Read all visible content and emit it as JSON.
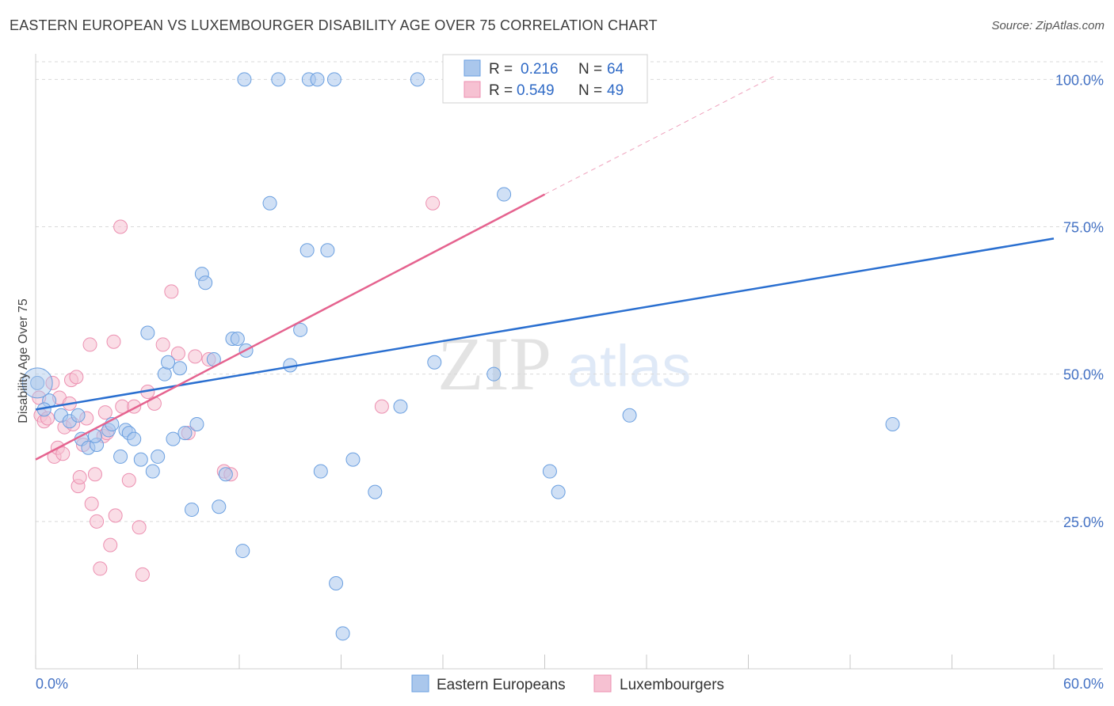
{
  "title": "EASTERN EUROPEAN VS LUXEMBOURGER DISABILITY AGE OVER 75 CORRELATION CHART",
  "source": "Source: ZipAtlas.com",
  "watermark": {
    "zip": "ZIP",
    "atlas": "atlas"
  },
  "colors": {
    "blue_fill": "#aac7ec",
    "blue_stroke": "#6a9fe0",
    "blue_line": "#2a6fd0",
    "pink_fill": "#f6c1d2",
    "pink_stroke": "#ec8fb0",
    "pink_line": "#e5638f",
    "grid": "#d9d9d9",
    "tick_text": "#4472c4"
  },
  "chart_data": {
    "type": "scatter",
    "title": "EASTERN EUROPEAN VS LUXEMBOURGER DISABILITY AGE OVER 75 CORRELATION CHART",
    "xlabel": "",
    "ylabel": "Disability Age Over 75",
    "xlim": [
      0,
      60
    ],
    "ylim": [
      0,
      103
    ],
    "x_tick_labels": [
      {
        "value": 0,
        "label": "0.0%"
      },
      {
        "value": 60,
        "label": "60.0%"
      }
    ],
    "y_tick_labels": [
      {
        "value": 25,
        "label": "25.0%"
      },
      {
        "value": 50,
        "label": "50.0%"
      },
      {
        "value": 75,
        "label": "75.0%"
      },
      {
        "value": 100,
        "label": "100.0%"
      }
    ],
    "legend": [
      {
        "name": "Eastern Europeans",
        "r_label": "R =",
        "r": "0.216",
        "n_label": "N =",
        "n": "64"
      },
      {
        "name": "Luxembourgers",
        "r_label": "R =",
        "r": "0.549",
        "n_label": "N =",
        "n": "49"
      }
    ],
    "series": [
      {
        "name": "Eastern Europeans",
        "color": "blue",
        "trend": {
          "x": [
            0,
            60
          ],
          "y": [
            44.0,
            73.0
          ],
          "style": "solid"
        },
        "points": [
          [
            0.1,
            48.5
          ],
          [
            0.8,
            45.5
          ],
          [
            0.5,
            44.0
          ],
          [
            1.5,
            43.0
          ],
          [
            2.0,
            42.0
          ],
          [
            2.5,
            43.0
          ],
          [
            2.7,
            39.0
          ],
          [
            3.1,
            37.5
          ],
          [
            3.6,
            38.0
          ],
          [
            3.5,
            39.5
          ],
          [
            4.3,
            40.5
          ],
          [
            4.5,
            41.5
          ],
          [
            5.0,
            36.0
          ],
          [
            5.3,
            40.5
          ],
          [
            5.5,
            40.0
          ],
          [
            5.8,
            39.0
          ],
          [
            6.2,
            35.5
          ],
          [
            6.6,
            57.0
          ],
          [
            6.9,
            33.5
          ],
          [
            7.2,
            36.0
          ],
          [
            7.6,
            50.0
          ],
          [
            7.8,
            52.0
          ],
          [
            8.1,
            39.0
          ],
          [
            8.5,
            51.0
          ],
          [
            8.8,
            40.0
          ],
          [
            9.2,
            27.0
          ],
          [
            9.5,
            41.5
          ],
          [
            9.8,
            67.0
          ],
          [
            10.0,
            65.5
          ],
          [
            10.5,
            52.5
          ],
          [
            10.8,
            27.5
          ],
          [
            11.2,
            33.0
          ],
          [
            11.6,
            56.0
          ],
          [
            11.9,
            56.0
          ],
          [
            12.2,
            20.0
          ],
          [
            12.4,
            54.0
          ],
          [
            12.3,
            100.0
          ],
          [
            13.8,
            79.0
          ],
          [
            14.3,
            100.0
          ],
          [
            15.0,
            51.5
          ],
          [
            15.6,
            57.5
          ],
          [
            16.0,
            71.0
          ],
          [
            16.1,
            100.0
          ],
          [
            16.6,
            100.0
          ],
          [
            16.8,
            33.5
          ],
          [
            17.2,
            71.0
          ],
          [
            17.7,
            14.5
          ],
          [
            17.6,
            100.0
          ],
          [
            18.1,
            6.0
          ],
          [
            18.7,
            35.5
          ],
          [
            20.0,
            30.0
          ],
          [
            21.5,
            44.5
          ],
          [
            22.5,
            100.0
          ],
          [
            23.5,
            52.0
          ],
          [
            27.0,
            50.0
          ],
          [
            27.6,
            80.5
          ],
          [
            30.3,
            33.5
          ],
          [
            30.8,
            30.0
          ],
          [
            35.0,
            43.0
          ],
          [
            50.5,
            41.5
          ]
        ]
      },
      {
        "name": "Luxembourgers",
        "color": "pink",
        "trend": {
          "x": [
            0,
            30
          ],
          "y": [
            35.5,
            80.5
          ],
          "style": "solid",
          "dashed_extension": {
            "x": [
              30,
              43.5
            ],
            "y": [
              80.5,
              100.5
            ]
          }
        },
        "points": [
          [
            0.2,
            46.0
          ],
          [
            0.3,
            43.0
          ],
          [
            0.5,
            42.0
          ],
          [
            0.7,
            42.5
          ],
          [
            1.0,
            48.5
          ],
          [
            1.1,
            36.0
          ],
          [
            1.3,
            37.5
          ],
          [
            1.4,
            46.0
          ],
          [
            1.6,
            36.5
          ],
          [
            1.7,
            41.0
          ],
          [
            2.0,
            45.0
          ],
          [
            2.1,
            49.0
          ],
          [
            2.2,
            41.5
          ],
          [
            2.4,
            49.5
          ],
          [
            2.5,
            31.0
          ],
          [
            2.6,
            32.5
          ],
          [
            2.8,
            38.0
          ],
          [
            3.0,
            42.5
          ],
          [
            3.2,
            55.0
          ],
          [
            3.3,
            28.0
          ],
          [
            3.5,
            33.0
          ],
          [
            3.6,
            25.0
          ],
          [
            3.8,
            17.0
          ],
          [
            4.0,
            39.5
          ],
          [
            4.1,
            43.5
          ],
          [
            4.2,
            40.0
          ],
          [
            4.4,
            21.0
          ],
          [
            4.6,
            55.5
          ],
          [
            4.7,
            26.0
          ],
          [
            5.0,
            75.0
          ],
          [
            5.1,
            44.5
          ],
          [
            5.5,
            32.0
          ],
          [
            5.8,
            44.5
          ],
          [
            6.1,
            24.0
          ],
          [
            6.3,
            16.0
          ],
          [
            6.6,
            47.0
          ],
          [
            7.0,
            45.0
          ],
          [
            7.5,
            55.0
          ],
          [
            8.0,
            64.0
          ],
          [
            8.4,
            53.5
          ],
          [
            9.0,
            40.0
          ],
          [
            9.4,
            53.0
          ],
          [
            10.2,
            52.5
          ],
          [
            11.1,
            33.5
          ],
          [
            11.5,
            33.0
          ],
          [
            20.4,
            44.5
          ],
          [
            23.4,
            79.0
          ]
        ]
      }
    ]
  }
}
